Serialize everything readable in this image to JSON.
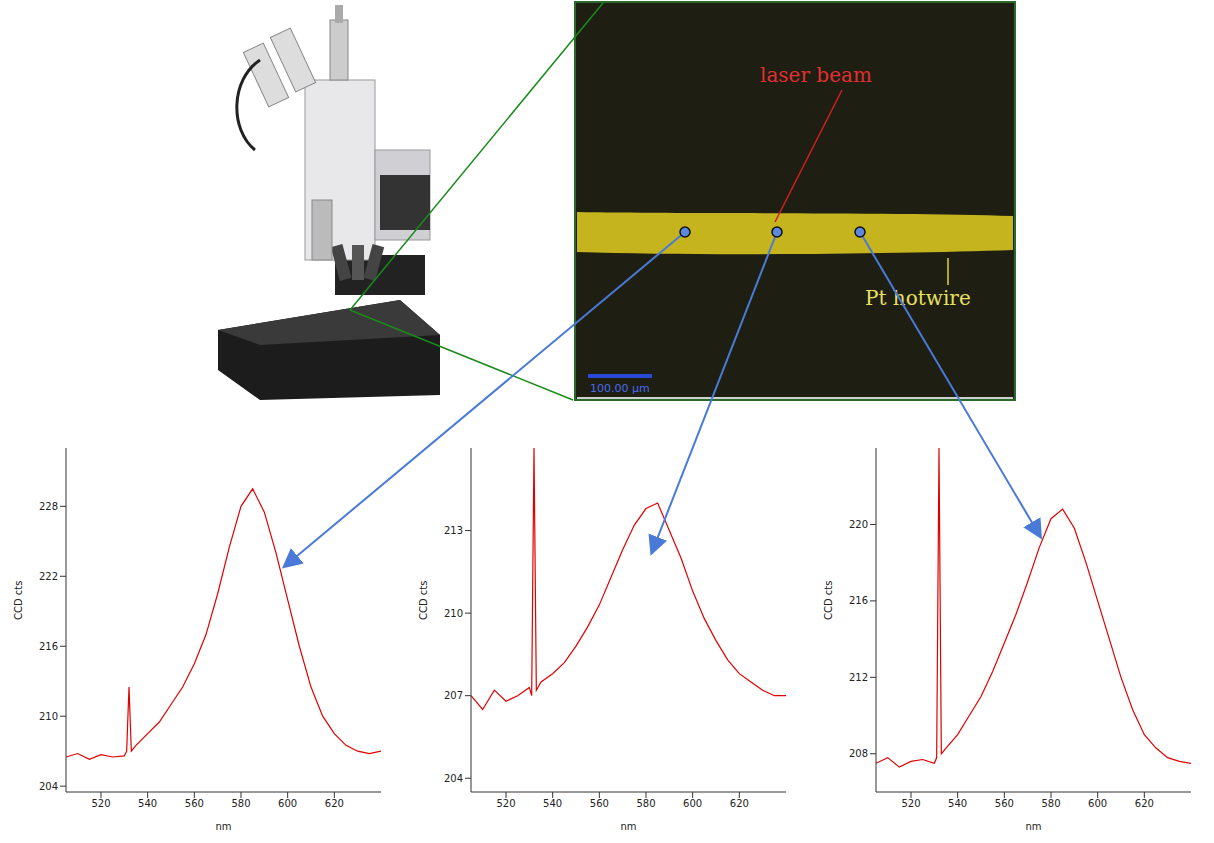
{
  "micrograph": {
    "annotations": [
      "laser beam",
      "Pt hotwire"
    ],
    "scale_bar": "100.00 µm"
  },
  "chart_data": [
    {
      "type": "line",
      "x_label": "nm",
      "y_label": "CCD cts",
      "color": "#e00000",
      "xlim": [
        505,
        640
      ],
      "xticks": [
        520,
        540,
        560,
        580,
        600,
        620
      ],
      "ylim": [
        203.5,
        233
      ],
      "yticks": [
        204,
        210,
        216,
        222,
        228
      ],
      "x": [
        505,
        510,
        515,
        520,
        525,
        530,
        531,
        532,
        533,
        535,
        540,
        545,
        550,
        555,
        560,
        565,
        570,
        575,
        580,
        585,
        590,
        595,
        600,
        605,
        610,
        615,
        620,
        625,
        630,
        635,
        640
      ],
      "values": [
        206.5,
        206.8,
        206.3,
        206.7,
        206.5,
        206.6,
        207,
        212.5,
        207,
        207.5,
        208.5,
        209.5,
        211,
        212.5,
        214.5,
        217,
        220.5,
        224.5,
        228,
        229.5,
        227.5,
        224,
        220,
        216,
        212.5,
        210,
        208.5,
        207.5,
        207,
        206.8,
        207
      ]
    },
    {
      "type": "line",
      "x_label": "nm",
      "y_label": "CCD cts",
      "color": "#e00000",
      "xlim": [
        505,
        640
      ],
      "xticks": [
        520,
        540,
        560,
        580,
        600,
        620
      ],
      "ylim": [
        203.5,
        216
      ],
      "yticks": [
        204,
        207,
        210,
        213
      ],
      "x": [
        505,
        510,
        515,
        520,
        525,
        530,
        531,
        532,
        533,
        535,
        540,
        545,
        550,
        555,
        560,
        565,
        570,
        575,
        580,
        585,
        590,
        595,
        600,
        605,
        610,
        615,
        620,
        625,
        630,
        635,
        640
      ],
      "values": [
        207,
        206.5,
        207.2,
        206.8,
        207,
        207.3,
        207,
        216,
        207.2,
        207.5,
        207.8,
        208.2,
        208.8,
        209.5,
        210.3,
        211.3,
        212.3,
        213.2,
        213.8,
        214,
        213,
        212,
        210.8,
        209.8,
        209,
        208.3,
        207.8,
        207.5,
        207.2,
        207,
        207
      ]
    },
    {
      "type": "line",
      "x_label": "nm",
      "y_label": "CCD cts",
      "color": "#e00000",
      "xlim": [
        505,
        640
      ],
      "xticks": [
        520,
        540,
        560,
        580,
        600,
        620
      ],
      "ylim": [
        206,
        224
      ],
      "yticks": [
        208,
        212,
        216,
        220
      ],
      "x": [
        505,
        510,
        515,
        520,
        525,
        530,
        531,
        532,
        533,
        535,
        540,
        545,
        550,
        555,
        560,
        565,
        570,
        575,
        580,
        585,
        590,
        595,
        600,
        605,
        610,
        615,
        620,
        625,
        630,
        635,
        640
      ],
      "values": [
        207.5,
        207.8,
        207.3,
        207.6,
        207.7,
        207.5,
        207.8,
        224,
        208,
        208.3,
        209,
        210,
        211,
        212.3,
        213.8,
        215.3,
        217,
        218.8,
        220.3,
        220.8,
        219.8,
        218,
        216,
        214,
        212,
        210.3,
        209,
        208.3,
        207.8,
        207.6,
        207.5
      ]
    }
  ]
}
